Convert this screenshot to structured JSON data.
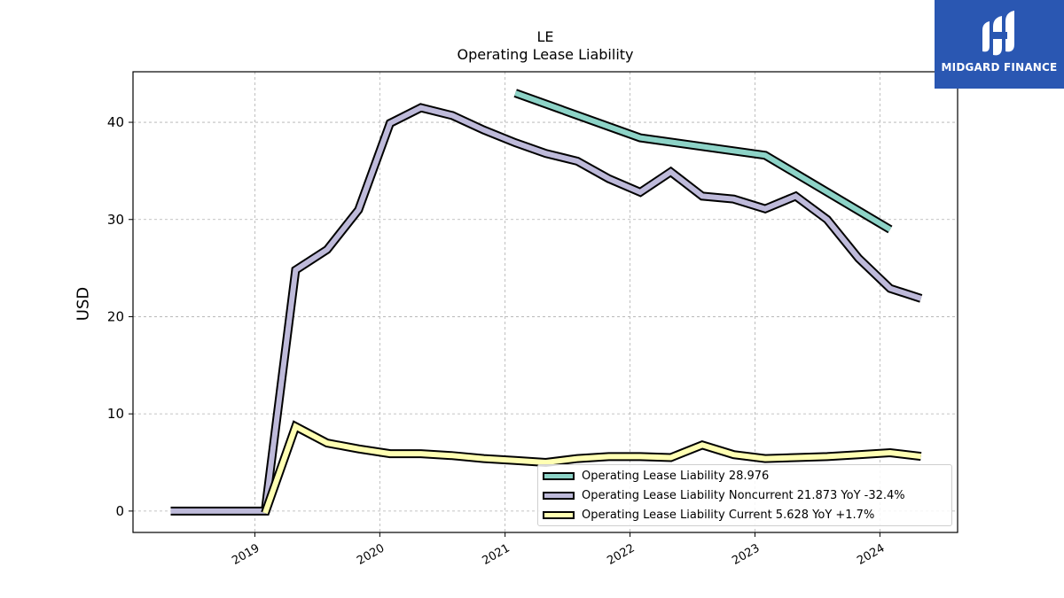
{
  "logo": {
    "brand_text": "MIDGARD FINANCE"
  },
  "chart_data": {
    "type": "line",
    "title": "LE",
    "subtitle": "Operating Lease Liability",
    "xlabel": "",
    "ylabel": "USD",
    "x_ticks": [
      "2019",
      "2020",
      "2021",
      "2022",
      "2023",
      "2024"
    ],
    "y_ticks": [
      "0",
      "10",
      "20",
      "30",
      "40"
    ],
    "ylim": [
      -2.2,
      45.2
    ],
    "xlim": [
      "2018-01-10",
      "2024-08-15"
    ],
    "grid": true,
    "legend_position": "bottom-right",
    "series": [
      {
        "name": "Operating Lease Liability",
        "legend_label": "Operating Lease Liability  28.976",
        "color": "#8dd3c7",
        "points": [
          [
            "2021-01-31",
            43.0
          ],
          [
            "2022-01-31",
            38.4
          ],
          [
            "2023-01-31",
            36.6
          ],
          [
            "2024-01-31",
            28.976
          ]
        ]
      },
      {
        "name": "Operating Lease Liability Noncurrent",
        "legend_label": "Operating Lease Liability Noncurrent  21.873 YoY -32.4%",
        "color": "#bebada",
        "points": [
          [
            "2018-04-30",
            0.0
          ],
          [
            "2018-07-31",
            0.0
          ],
          [
            "2018-10-31",
            0.0
          ],
          [
            "2019-01-31",
            0.0
          ],
          [
            "2019-04-30",
            24.8
          ],
          [
            "2019-07-31",
            26.9
          ],
          [
            "2019-10-31",
            31.0
          ],
          [
            "2020-01-31",
            39.9
          ],
          [
            "2020-04-30",
            41.5
          ],
          [
            "2020-07-31",
            40.7
          ],
          [
            "2020-10-31",
            39.2
          ],
          [
            "2021-01-31",
            37.9
          ],
          [
            "2021-04-30",
            36.8
          ],
          [
            "2021-07-31",
            36.0
          ],
          [
            "2021-10-31",
            34.2
          ],
          [
            "2022-01-31",
            32.8
          ],
          [
            "2022-04-30",
            34.9
          ],
          [
            "2022-07-31",
            32.4
          ],
          [
            "2022-10-31",
            32.1
          ],
          [
            "2023-01-31",
            31.1
          ],
          [
            "2023-04-30",
            32.4
          ],
          [
            "2023-07-31",
            30.0
          ],
          [
            "2023-10-31",
            26.0
          ],
          [
            "2024-01-31",
            22.9
          ],
          [
            "2024-04-30",
            21.873
          ]
        ]
      },
      {
        "name": "Operating Lease Liability Current",
        "legend_label": "Operating Lease Liability Current  5.628 YoY +1.7%",
        "color": "#ffffb3",
        "points": [
          [
            "2019-01-31",
            -0.2
          ],
          [
            "2019-04-30",
            8.7
          ],
          [
            "2019-07-31",
            7.0
          ],
          [
            "2019-10-31",
            6.4
          ],
          [
            "2020-01-31",
            5.9
          ],
          [
            "2020-04-30",
            5.9
          ],
          [
            "2020-07-31",
            5.7
          ],
          [
            "2020-10-31",
            5.4
          ],
          [
            "2021-01-31",
            5.2
          ],
          [
            "2021-04-30",
            5.0
          ],
          [
            "2021-07-31",
            5.4
          ],
          [
            "2021-10-31",
            5.6
          ],
          [
            "2022-01-31",
            5.6
          ],
          [
            "2022-04-30",
            5.5
          ],
          [
            "2022-07-31",
            6.8
          ],
          [
            "2022-10-31",
            5.8
          ],
          [
            "2023-01-31",
            5.4
          ],
          [
            "2023-04-30",
            5.5
          ],
          [
            "2023-07-31",
            5.6
          ],
          [
            "2023-10-31",
            5.8
          ],
          [
            "2024-01-31",
            6.0
          ],
          [
            "2024-04-30",
            5.628
          ]
        ]
      }
    ]
  }
}
